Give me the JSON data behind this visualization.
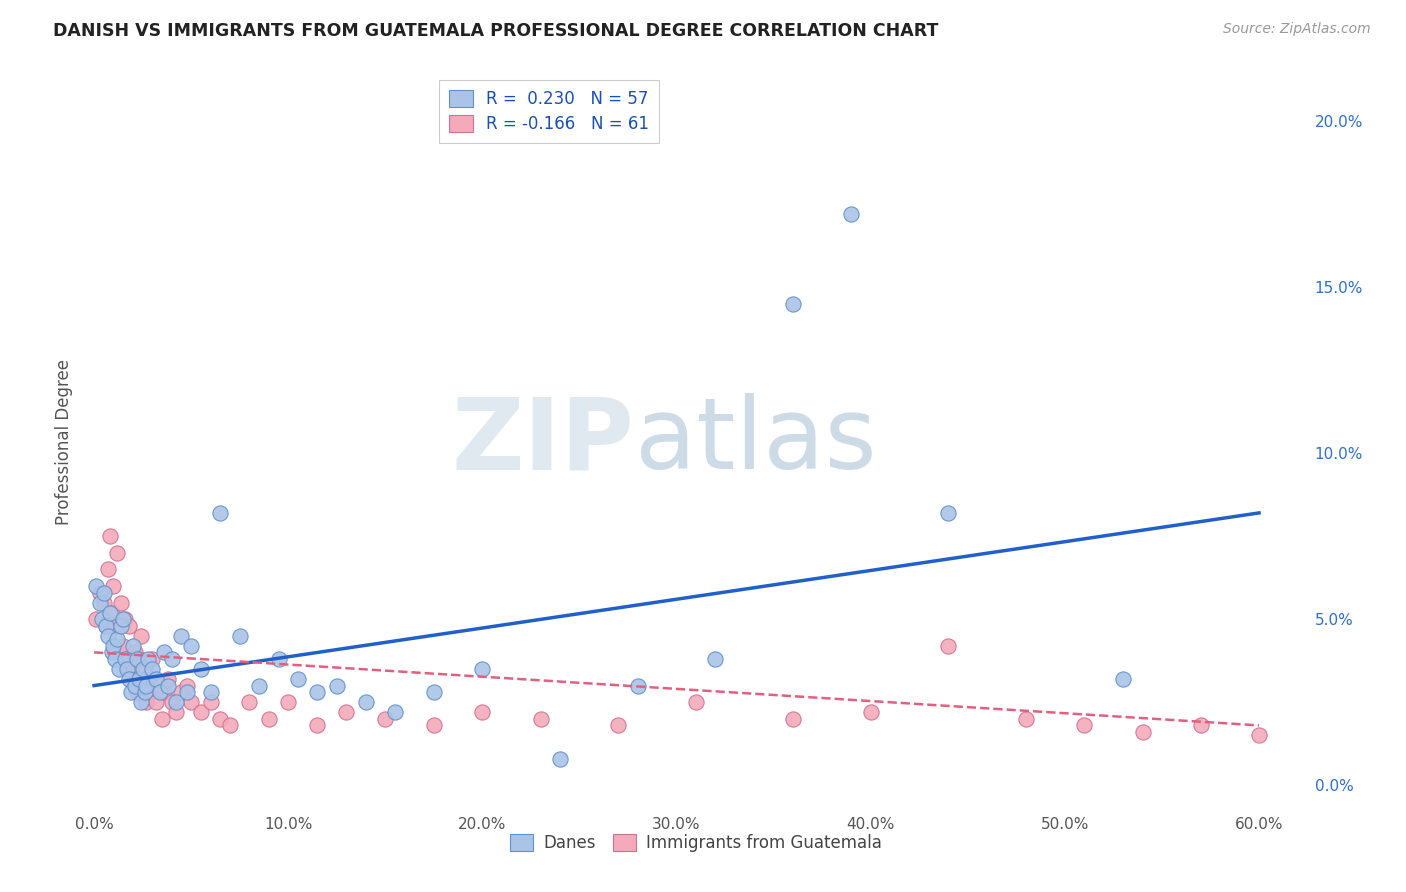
{
  "title": "DANISH VS IMMIGRANTS FROM GUATEMALA PROFESSIONAL DEGREE CORRELATION CHART",
  "source": "Source: ZipAtlas.com",
  "ylabel": "Professional Degree",
  "xlabel_ticks": [
    "0.0%",
    "10.0%",
    "20.0%",
    "30.0%",
    "40.0%",
    "50.0%",
    "60.0%"
  ],
  "xlabel_vals": [
    0.0,
    0.1,
    0.2,
    0.3,
    0.4,
    0.5,
    0.6
  ],
  "ylabel_ticks": [
    "0.0%",
    "5.0%",
    "10.0%",
    "15.0%",
    "20.0%"
  ],
  "ylabel_vals": [
    0.0,
    0.05,
    0.1,
    0.15,
    0.2
  ],
  "xlim": [
    -0.005,
    0.625
  ],
  "ylim": [
    -0.008,
    0.215
  ],
  "legend_entries": [
    {
      "label": "R =  0.230   N = 57",
      "facecolor": "#aac4e8",
      "edgecolor": "#6090c8"
    },
    {
      "label": "R = -0.166   N = 61",
      "facecolor": "#f4aabb",
      "edgecolor": "#d07090"
    }
  ],
  "danes_facecolor": "#aac4e8",
  "danes_edgecolor": "#6090c8",
  "guate_facecolor": "#f4aabb",
  "guate_edgecolor": "#d07090",
  "danes_line_color": "#2060c8",
  "guate_line_color": "#e06080",
  "background_color": "#ffffff",
  "grid_color": "#d0dde8",
  "watermark_zip_color": "#d4dfe8",
  "watermark_atlas_color": "#b8ccd8",
  "danes_scatter_x": [
    0.001,
    0.003,
    0.004,
    0.005,
    0.006,
    0.007,
    0.008,
    0.009,
    0.01,
    0.011,
    0.012,
    0.013,
    0.014,
    0.015,
    0.016,
    0.017,
    0.018,
    0.019,
    0.02,
    0.021,
    0.022,
    0.023,
    0.024,
    0.025,
    0.026,
    0.027,
    0.028,
    0.03,
    0.032,
    0.034,
    0.036,
    0.038,
    0.04,
    0.042,
    0.045,
    0.048,
    0.05,
    0.055,
    0.06,
    0.065,
    0.075,
    0.085,
    0.095,
    0.105,
    0.115,
    0.125,
    0.14,
    0.155,
    0.175,
    0.2,
    0.24,
    0.28,
    0.32,
    0.36,
    0.39,
    0.44,
    0.53
  ],
  "danes_scatter_y": [
    0.06,
    0.055,
    0.05,
    0.058,
    0.048,
    0.045,
    0.052,
    0.04,
    0.042,
    0.038,
    0.044,
    0.035,
    0.048,
    0.05,
    0.038,
    0.035,
    0.032,
    0.028,
    0.042,
    0.03,
    0.038,
    0.032,
    0.025,
    0.035,
    0.028,
    0.03,
    0.038,
    0.035,
    0.032,
    0.028,
    0.04,
    0.03,
    0.038,
    0.025,
    0.045,
    0.028,
    0.042,
    0.035,
    0.028,
    0.082,
    0.045,
    0.03,
    0.038,
    0.032,
    0.028,
    0.03,
    0.025,
    0.022,
    0.028,
    0.035,
    0.008,
    0.03,
    0.038,
    0.145,
    0.172,
    0.082,
    0.032
  ],
  "guate_scatter_x": [
    0.001,
    0.003,
    0.005,
    0.006,
    0.007,
    0.008,
    0.009,
    0.01,
    0.011,
    0.012,
    0.013,
    0.014,
    0.015,
    0.016,
    0.017,
    0.018,
    0.019,
    0.02,
    0.021,
    0.022,
    0.023,
    0.024,
    0.025,
    0.026,
    0.027,
    0.028,
    0.029,
    0.03,
    0.032,
    0.034,
    0.035,
    0.036,
    0.038,
    0.04,
    0.042,
    0.045,
    0.048,
    0.05,
    0.055,
    0.06,
    0.065,
    0.07,
    0.08,
    0.09,
    0.1,
    0.115,
    0.13,
    0.15,
    0.175,
    0.2,
    0.23,
    0.27,
    0.31,
    0.36,
    0.4,
    0.44,
    0.48,
    0.51,
    0.54,
    0.57,
    0.6
  ],
  "guate_scatter_y": [
    0.05,
    0.058,
    0.055,
    0.048,
    0.065,
    0.075,
    0.052,
    0.06,
    0.048,
    0.07,
    0.04,
    0.055,
    0.042,
    0.05,
    0.038,
    0.048,
    0.035,
    0.032,
    0.04,
    0.028,
    0.038,
    0.045,
    0.03,
    0.035,
    0.025,
    0.032,
    0.028,
    0.038,
    0.025,
    0.03,
    0.02,
    0.028,
    0.032,
    0.025,
    0.022,
    0.028,
    0.03,
    0.025,
    0.022,
    0.025,
    0.02,
    0.018,
    0.025,
    0.02,
    0.025,
    0.018,
    0.022,
    0.02,
    0.018,
    0.022,
    0.02,
    0.018,
    0.025,
    0.02,
    0.022,
    0.042,
    0.02,
    0.018,
    0.016,
    0.018,
    0.015
  ]
}
